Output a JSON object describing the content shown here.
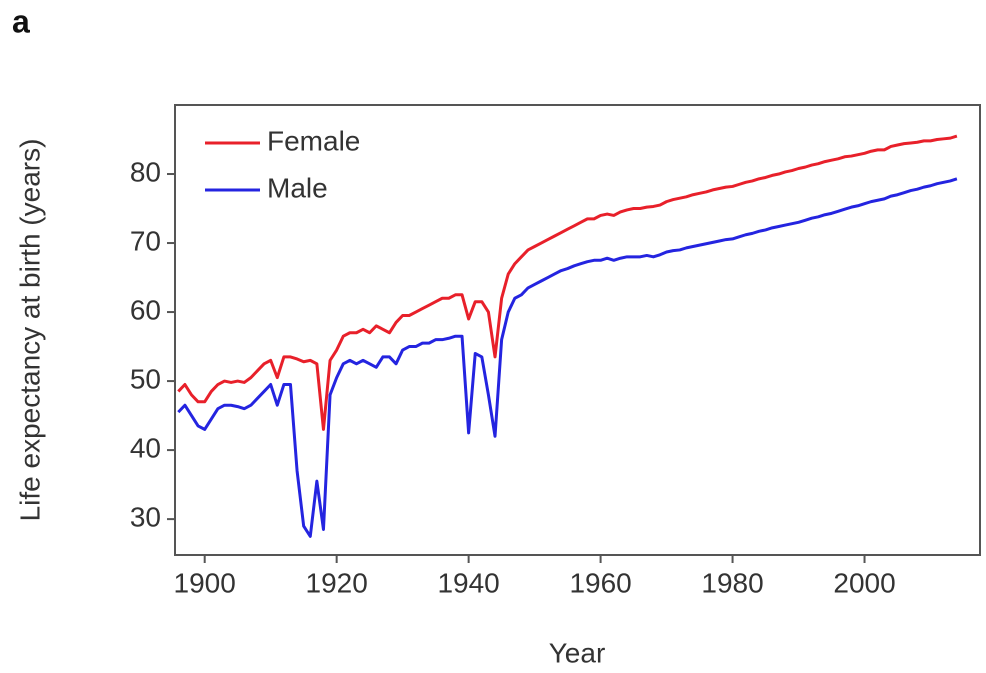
{
  "panel_label": "a",
  "chart_data": {
    "type": "line",
    "xlabel": "Year",
    "ylabel": "Life expectancy at birth (years)",
    "x": [
      1896,
      1897,
      1898,
      1899,
      1900,
      1901,
      1902,
      1903,
      1904,
      1905,
      1906,
      1907,
      1908,
      1909,
      1910,
      1911,
      1912,
      1913,
      1914,
      1915,
      1916,
      1917,
      1918,
      1919,
      1920,
      1921,
      1922,
      1923,
      1924,
      1925,
      1926,
      1927,
      1928,
      1929,
      1930,
      1931,
      1932,
      1933,
      1934,
      1935,
      1936,
      1937,
      1938,
      1939,
      1940,
      1941,
      1942,
      1943,
      1944,
      1945,
      1946,
      1947,
      1948,
      1949,
      1950,
      1951,
      1952,
      1953,
      1954,
      1955,
      1956,
      1957,
      1958,
      1959,
      1960,
      1961,
      1962,
      1963,
      1964,
      1965,
      1966,
      1967,
      1968,
      1969,
      1970,
      1971,
      1972,
      1973,
      1974,
      1975,
      1976,
      1977,
      1978,
      1979,
      1980,
      1981,
      1982,
      1983,
      1984,
      1985,
      1986,
      1987,
      1988,
      1989,
      1990,
      1991,
      1992,
      1993,
      1994,
      1995,
      1996,
      1997,
      1998,
      1999,
      2000,
      2001,
      2002,
      2003,
      2004,
      2005,
      2006,
      2007,
      2008,
      2009,
      2010,
      2011,
      2012,
      2013,
      2014
    ],
    "series": [
      {
        "name": "Female",
        "color": "#e8202a",
        "values": [
          48.5,
          49.5,
          48,
          47,
          47,
          48.5,
          49.5,
          50,
          49.8,
          50,
          49.8,
          50.5,
          51.5,
          52.5,
          53,
          50.5,
          53.5,
          53.5,
          53.2,
          52.8,
          53,
          52.5,
          43,
          53,
          54.5,
          56.5,
          57,
          57,
          57.5,
          57,
          58,
          57.5,
          57,
          58.5,
          59.5,
          59.5,
          60,
          60.5,
          61,
          61.5,
          62,
          62,
          62.5,
          62.5,
          59,
          61.5,
          61.5,
          60,
          53.5,
          62,
          65.5,
          67,
          68,
          69,
          69.5,
          70,
          70.5,
          71,
          71.5,
          72,
          72.5,
          73,
          73.5,
          73.5,
          74,
          74.2,
          74,
          74.5,
          74.8,
          75,
          75,
          75.2,
          75.3,
          75.5,
          76,
          76.3,
          76.5,
          76.7,
          77,
          77.2,
          77.4,
          77.7,
          77.9,
          78.1,
          78.2,
          78.5,
          78.8,
          79,
          79.3,
          79.5,
          79.8,
          80,
          80.3,
          80.5,
          80.8,
          81,
          81.3,
          81.5,
          81.8,
          82,
          82.2,
          82.5,
          82.6,
          82.8,
          83,
          83.3,
          83.5,
          83.5,
          84,
          84.2,
          84.4,
          84.5,
          84.6,
          84.8,
          84.8,
          85,
          85.1,
          85.2,
          85.5
        ]
      },
      {
        "name": "Male",
        "color": "#2424e0",
        "values": [
          45.5,
          46.5,
          45,
          43.5,
          43,
          44.5,
          46,
          46.5,
          46.5,
          46.3,
          46,
          46.5,
          47.5,
          48.5,
          49.5,
          46.5,
          49.5,
          49.5,
          37,
          29,
          27.5,
          35.5,
          28.5,
          48,
          50.5,
          52.5,
          53,
          52.5,
          53,
          52.5,
          52,
          53.5,
          53.5,
          52.5,
          54.5,
          55,
          55,
          55.5,
          55.5,
          56,
          56,
          56.2,
          56.5,
          56.5,
          42.5,
          54,
          53.5,
          48,
          42,
          56,
          60,
          62,
          62.5,
          63.5,
          64,
          64.5,
          65,
          65.5,
          66,
          66.3,
          66.7,
          67,
          67.3,
          67.5,
          67.5,
          67.8,
          67.5,
          67.8,
          68,
          68,
          68,
          68.2,
          68,
          68.3,
          68.7,
          68.9,
          69,
          69.3,
          69.5,
          69.7,
          69.9,
          70.1,
          70.3,
          70.5,
          70.6,
          70.9,
          71.2,
          71.4,
          71.7,
          71.9,
          72.2,
          72.4,
          72.6,
          72.8,
          73,
          73.3,
          73.6,
          73.8,
          74.1,
          74.3,
          74.6,
          74.9,
          75.2,
          75.4,
          75.7,
          76,
          76.2,
          76.4,
          76.8,
          77,
          77.3,
          77.6,
          77.8,
          78.1,
          78.3,
          78.6,
          78.8,
          79,
          79.3
        ]
      }
    ],
    "xlim": [
      1895.5,
      2017.5
    ],
    "xticks": [
      1900,
      1920,
      1940,
      1960,
      1980,
      2000
    ],
    "ylim": [
      24.8,
      90
    ],
    "yticks": [
      30,
      40,
      50,
      60,
      70,
      80
    ],
    "grid": false,
    "legend": "upper left"
  }
}
